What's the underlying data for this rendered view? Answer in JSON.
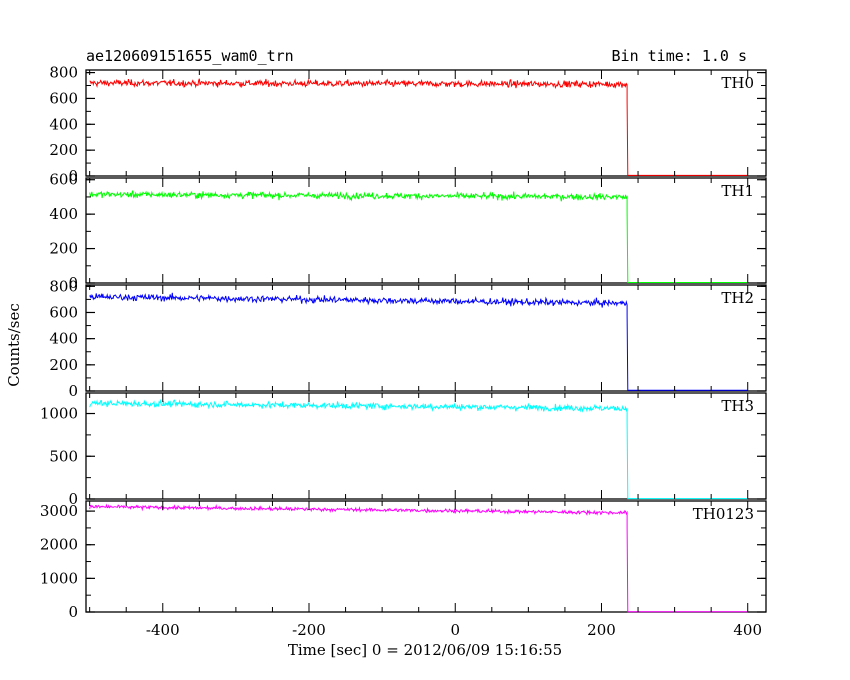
{
  "chart_data": {
    "type": "line",
    "title": "ae120609151655_wam0_trn",
    "bin_time_label": "Bin time: 1.0 s",
    "xlabel": "Time [sec] 0 = 2012/06/09 15:16:55",
    "ylabel": "Counts/sec",
    "xlim": [
      -505,
      425
    ],
    "x_ticks": [
      "-400",
      "-200",
      "0",
      "200",
      "400"
    ],
    "x_tick_values": [
      -400,
      -200,
      0,
      200,
      400
    ],
    "grid": false,
    "step_time": 235,
    "x_start": -500,
    "x_end": 400,
    "series": [
      {
        "name": "TH0",
        "color": "#ff0000",
        "ylim": [
          0,
          820
        ],
        "y_ticks": [
          0,
          200,
          400,
          600,
          800
        ],
        "y_tick_labels": [
          "0",
          "200",
          "400",
          "600",
          "800"
        ],
        "level_start": 720,
        "level_end": 710,
        "noise": 25,
        "level_after": 5
      },
      {
        "name": "TH1",
        "color": "#00ff00",
        "ylim": [
          0,
          610
        ],
        "y_ticks": [
          0,
          200,
          400,
          600
        ],
        "y_tick_labels": [
          "0",
          "200",
          "400",
          "600"
        ],
        "level_start": 515,
        "level_end": 500,
        "noise": 18,
        "level_after": 3
      },
      {
        "name": "TH2",
        "color": "#0000ff",
        "ylim": [
          0,
          810
        ],
        "y_ticks": [
          0,
          200,
          400,
          600,
          800
        ],
        "y_tick_labels": [
          "0",
          "200",
          "400",
          "600",
          "800"
        ],
        "level_start": 720,
        "level_end": 670,
        "noise": 25,
        "level_after": 5
      },
      {
        "name": "TH3",
        "color": "#00ffff",
        "ylim": [
          0,
          1240
        ],
        "y_ticks": [
          0,
          500,
          1000
        ],
        "y_tick_labels": [
          "0",
          "500",
          "1000"
        ],
        "level_start": 1120,
        "level_end": 1060,
        "noise": 35,
        "level_after": 5
      },
      {
        "name": "TH0123",
        "color": "#ff00ff",
        "ylim": [
          0,
          3300
        ],
        "y_ticks": [
          0,
          1000,
          2000,
          3000
        ],
        "y_tick_labels": [
          "0",
          "1000",
          "2000",
          "3000"
        ],
        "level_start": 3130,
        "level_end": 2950,
        "noise": 50,
        "level_after": 10
      }
    ]
  }
}
